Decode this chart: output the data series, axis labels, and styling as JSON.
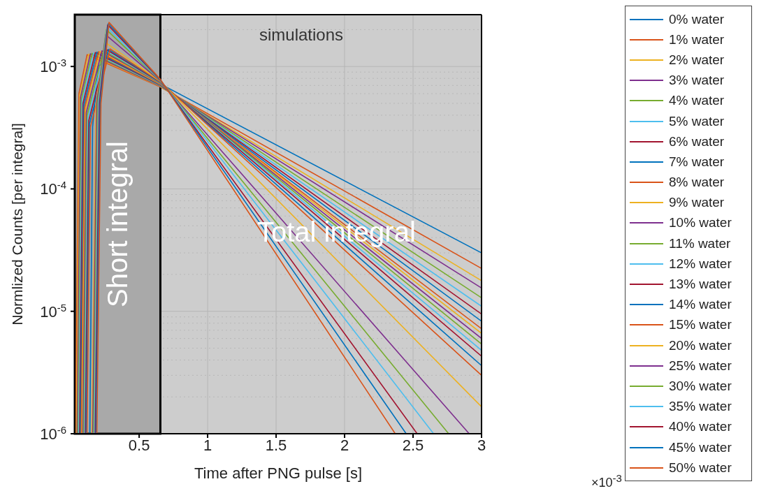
{
  "chart_data": {
    "type": "line",
    "xlabel": "Time after PNG pulse [s]",
    "ylabel": "Normlized Counts [per integral]",
    "log": "y",
    "grid": true,
    "legend": "right",
    "marker": "none",
    "line_style": "solid",
    "xlim": [
      0.03,
      3
    ],
    "xticks": [
      0.5,
      1,
      1.5,
      2,
      2.5,
      3
    ],
    "ylim": [
      1e-06,
      0.00265
    ],
    "yticks": [
      {
        "value": 1e-06,
        "label": "10$^{-6}$"
      },
      {
        "value": 1e-05,
        "label": "10$^{-5}$"
      },
      {
        "value": 0.0001,
        "label": "10$^{-4}$"
      },
      {
        "value": 0.001,
        "label": "10$^{-3}$"
      }
    ],
    "bands": [
      {
        "axis": "x",
        "from": 0.03,
        "to": 0.655,
        "label": "Short integral",
        "color": "#a9a9a9"
      }
    ],
    "annotations": [
      "simulations",
      "Total integral",
      "×10$^{-3}$"
    ],
    "series": [
      {
        "name": "0% water",
        "color": "#0072bd",
        "x": [
          0.14,
          0.16,
          0.2,
          0.3,
          0.45,
          0.655,
          3
        ],
        "values": [
          1e-06,
          0.00032,
          0.001,
          0.0012,
          0.00105,
          0.00072,
          3e-05
        ]
      },
      {
        "name": "1% water",
        "color": "#d95319",
        "x": [
          0.035,
          0.06,
          0.12,
          0.655,
          3
        ],
        "values": [
          1e-06,
          0.0006,
          0.00125,
          0.00068,
          2.24e-05
        ]
      },
      {
        "name": "2% water",
        "color": "#edb120",
        "x": [
          0.041,
          0.066,
          0.132,
          0.655,
          3
        ],
        "values": [
          1e-06,
          0.00058,
          0.00126,
          0.000685,
          1.78e-05
        ]
      },
      {
        "name": "3% water",
        "color": "#7e2f8e",
        "x": [
          0.047,
          0.072,
          0.144,
          0.655,
          3
        ],
        "values": [
          1e-06,
          0.00056,
          0.00127,
          0.00069,
          1.55e-05
        ]
      },
      {
        "name": "4% water",
        "color": "#77ac30",
        "x": [
          0.053,
          0.078,
          0.156,
          0.655,
          3
        ],
        "values": [
          1e-06,
          0.00054,
          0.00128,
          0.000695,
          1.29e-05
        ]
      },
      {
        "name": "5% water",
        "color": "#4dbeee",
        "x": [
          0.059,
          0.084,
          0.168,
          0.655,
          3
        ],
        "values": [
          1e-06,
          0.00052,
          0.00129,
          0.0007,
          1.1e-05
        ]
      },
      {
        "name": "6% water",
        "color": "#a2142f",
        "x": [
          0.065,
          0.09,
          0.18,
          0.655,
          3
        ],
        "values": [
          1e-06,
          0.0005,
          0.0013,
          0.000705,
          9.5e-06
        ]
      },
      {
        "name": "7% water",
        "color": "#0072bd",
        "x": [
          0.071,
          0.096,
          0.192,
          0.655,
          3
        ],
        "values": [
          1e-06,
          0.00048,
          0.00131,
          0.00071,
          8.3e-06
        ]
      },
      {
        "name": "8% water",
        "color": "#d95319",
        "x": [
          0.077,
          0.102,
          0.204,
          0.655,
          3
        ],
        "values": [
          1e-06,
          0.00046,
          0.00132,
          0.000715,
          7.2e-06
        ]
      },
      {
        "name": "9% water",
        "color": "#edb120",
        "x": [
          0.083,
          0.108,
          0.216,
          0.655,
          3
        ],
        "values": [
          1e-06,
          0.00044,
          0.00133,
          0.00072,
          6.6e-06
        ]
      },
      {
        "name": "10% water",
        "color": "#7e2f8e",
        "x": [
          0.089,
          0.114,
          0.228,
          0.655,
          3
        ],
        "values": [
          1e-06,
          0.00042,
          0.00134,
          0.000725,
          6e-06
        ]
      },
      {
        "name": "11% water",
        "color": "#77ac30",
        "x": [
          0.095,
          0.12,
          0.24,
          0.655,
          3
        ],
        "values": [
          1e-06,
          0.0004,
          0.00135,
          0.00073,
          5.4e-06
        ]
      },
      {
        "name": "12% water",
        "color": "#4dbeee",
        "x": [
          0.101,
          0.126,
          0.252,
          0.655,
          3
        ],
        "values": [
          1e-06,
          0.00038,
          0.00136,
          0.000735,
          4.8e-06
        ]
      },
      {
        "name": "13% water",
        "color": "#a2142f",
        "x": [
          0.107,
          0.132,
          0.264,
          0.655,
          3
        ],
        "values": [
          1e-06,
          0.00036,
          0.00137,
          0.00074,
          4.3e-06
        ]
      },
      {
        "name": "14% water",
        "color": "#0072bd",
        "x": [
          0.113,
          0.138,
          0.276,
          0.655,
          3
        ],
        "values": [
          1e-06,
          0.00034,
          0.00138,
          0.000745,
          3.6e-06
        ]
      },
      {
        "name": "15% water",
        "color": "#d95319",
        "x": [
          0.119,
          0.144,
          0.288,
          0.655,
          3
        ],
        "values": [
          1e-06,
          0.00032,
          0.00139,
          0.00075,
          3e-06
        ]
      },
      {
        "name": "20% water",
        "color": "#edb120",
        "x": [
          0.155,
          0.185,
          0.25,
          0.655,
          3
        ],
        "values": [
          1e-06,
          0.0005,
          0.00158,
          0.000755,
          1.66e-06
        ]
      },
      {
        "name": "25% water",
        "color": "#7e2f8e",
        "x": [
          0.161,
          0.191,
          0.255,
          0.655,
          2.91
        ],
        "values": [
          1e-06,
          0.0005,
          0.00182,
          0.00076,
          1e-06
        ]
      },
      {
        "name": "30% water",
        "color": "#77ac30",
        "x": [
          0.167,
          0.197,
          0.26,
          0.655,
          2.76
        ],
        "values": [
          1e-06,
          0.0005,
          0.002,
          0.000765,
          1e-06
        ]
      },
      {
        "name": "35% water",
        "color": "#4dbeee",
        "x": [
          0.173,
          0.203,
          0.265,
          0.655,
          2.65
        ],
        "values": [
          1e-06,
          0.0005,
          0.00209,
          0.00077,
          1e-06
        ]
      },
      {
        "name": "40% water",
        "color": "#a2142f",
        "x": [
          0.179,
          0.209,
          0.27,
          0.655,
          2.53
        ],
        "values": [
          1e-06,
          0.0005,
          0.00219,
          0.000775,
          1e-06
        ]
      },
      {
        "name": "45% water",
        "color": "#0072bd",
        "x": [
          0.185,
          0.215,
          0.275,
          0.655,
          2.45
        ],
        "values": [
          1e-06,
          0.0005,
          0.00224,
          0.00078,
          1e-06
        ]
      },
      {
        "name": "50% water",
        "color": "#d95319",
        "x": [
          0.191,
          0.221,
          0.28,
          0.655,
          2.37
        ],
        "values": [
          1e-06,
          0.0005,
          0.00229,
          0.000785,
          1e-06
        ]
      }
    ]
  }
}
